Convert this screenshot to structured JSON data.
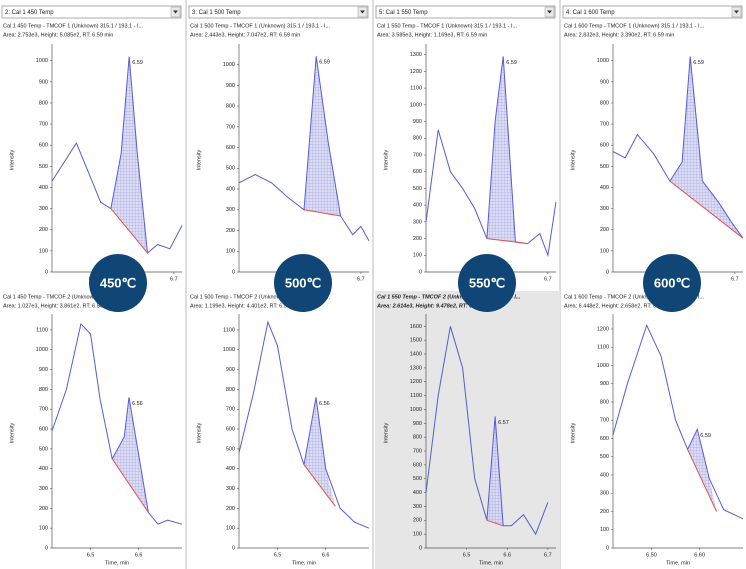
{
  "ui": {
    "dropdowns": [
      "2: Cal 1 450 Temp",
      "3: Cal 1 500 Temp",
      "5: Cal 1 550 Temp",
      "4: Cal 1 600 Temp"
    ],
    "badges": [
      "450℃",
      "500℃",
      "550℃",
      "600℃"
    ]
  },
  "chart_data": [
    {
      "type": "line",
      "title": "Cal 1 450 Temp - TMCOF 1 (Unknown) 315.1 / 193.1 - I...",
      "subtitle": "Area: 2.753e3, Height: 5.085e2, RT: 6.59 min",
      "x": [
        6.4,
        6.43,
        6.46,
        6.49,
        6.52,
        6.545,
        6.57,
        6.59,
        6.61,
        6.635,
        6.66,
        6.69,
        6.72
      ],
      "values": [
        430,
        520,
        610,
        470,
        330,
        300,
        560,
        1020,
        560,
        90,
        130,
        110,
        220
      ],
      "color": "#5a5ad8",
      "baseline": {
        "x": [
          6.545,
          6.635
        ],
        "values": [
          300,
          90
        ],
        "color": "#e0504a"
      },
      "peak_label": "6.59",
      "xlim": [
        6.4,
        6.72
      ],
      "ylim": [
        0,
        1060
      ],
      "xticks": [
        6.5,
        6.6,
        6.7
      ],
      "yticks": [
        0,
        100,
        200,
        300,
        400,
        500,
        600,
        700,
        800,
        900,
        1000
      ],
      "ylabel": "Intensity"
    },
    {
      "type": "line",
      "title": "Cal 1 500 Temp - TMCOF 1 (Unknown) 315.1 / 193.1 - I...",
      "subtitle": "Area: 2.443e3, Height: 7.047e2, RT: 6.59 min",
      "x": [
        6.4,
        6.44,
        6.48,
        6.52,
        6.56,
        6.59,
        6.62,
        6.65,
        6.68,
        6.7,
        6.72
      ],
      "values": [
        430,
        470,
        430,
        360,
        300,
        1040,
        620,
        270,
        180,
        220,
        150
      ],
      "color": "#5a5ad8",
      "baseline": {
        "x": [
          6.56,
          6.65
        ],
        "values": [
          300,
          270
        ],
        "color": "#e0504a"
      },
      "peak_label": "6.59",
      "xlim": [
        6.4,
        6.72
      ],
      "ylim": [
        0,
        1080
      ],
      "xticks": [
        6.5,
        6.6,
        6.7
      ],
      "yticks": [
        0,
        100,
        200,
        300,
        400,
        500,
        600,
        700,
        800,
        900,
        1000
      ],
      "ylabel": "Intensity"
    },
    {
      "type": "line",
      "title": "Cal 1 550 Temp - TMCOF 1 (Unknown) 315.1 / 193.1 - I...",
      "subtitle": "Area: 3.585e3, Height: 1.169e3, RT: 6.59 min",
      "x": [
        6.4,
        6.43,
        6.46,
        6.49,
        6.52,
        6.55,
        6.57,
        6.59,
        6.62,
        6.65,
        6.68,
        6.7,
        6.72
      ],
      "values": [
        300,
        850,
        600,
        500,
        380,
        200,
        900,
        1290,
        180,
        170,
        230,
        100,
        420
      ],
      "color": "#5a5ad8",
      "baseline": {
        "x": [
          6.55,
          6.65
        ],
        "values": [
          200,
          170
        ],
        "color": "#e0504a"
      },
      "peak_label": "6.59",
      "xlim": [
        6.4,
        6.72
      ],
      "ylim": [
        0,
        1340
      ],
      "xticks": [
        6.5,
        6.6,
        6.7
      ],
      "yticks": [
        0,
        100,
        200,
        300,
        400,
        500,
        600,
        700,
        800,
        900,
        1000,
        1100,
        1200,
        1300
      ],
      "ylabel": "Intensity"
    },
    {
      "type": "line",
      "title": "Cal 1 600 Temp - TMCOF 1 (Unknown) 315.1 / 193.1 - I...",
      "subtitle": "Area: 2.832e3, Height: 3.390e2, RT: 6.59 min",
      "x": [
        6.4,
        6.43,
        6.46,
        6.5,
        6.54,
        6.57,
        6.59,
        6.62,
        6.66,
        6.69,
        6.72
      ],
      "values": [
        570,
        540,
        650,
        560,
        430,
        520,
        1020,
        430,
        330,
        240,
        160
      ],
      "color": "#5a5ad8",
      "baseline": {
        "x": [
          6.54,
          6.72
        ],
        "values": [
          430,
          160
        ],
        "color": "#e0504a"
      },
      "peak_label": "6.59",
      "xlim": [
        6.4,
        6.72
      ],
      "ylim": [
        0,
        1060
      ],
      "xticks": [
        6.5,
        6.6,
        6.7
      ],
      "yticks": [
        0,
        100,
        200,
        300,
        400,
        500,
        600,
        700,
        800,
        900,
        1000
      ],
      "ylabel": "Intensity"
    },
    {
      "type": "line",
      "title": "Cal 1 450 Temp - TMCOF 2 (Unknown) 315.1 / 123.1 - I...",
      "subtitle": "Area: 1.027e3, Height: 3.861e2, RT: 6.56 min",
      "x": [
        6.42,
        6.45,
        6.48,
        6.5,
        6.52,
        6.545,
        6.57,
        6.58,
        6.6,
        6.62,
        6.64,
        6.66,
        6.69
      ],
      "values": [
        590,
        800,
        1130,
        1080,
        750,
        450,
        560,
        760,
        470,
        180,
        120,
        140,
        120
      ],
      "color": "#5a5ad8",
      "baseline": {
        "x": [
          6.545,
          6.62
        ],
        "values": [
          450,
          180
        ],
        "color": "#e0504a"
      },
      "peak_label": "6.56",
      "xlim": [
        6.42,
        6.69
      ],
      "ylim": [
        0,
        1160
      ],
      "xticks": [
        6.5,
        6.6
      ],
      "yticks": [
        0,
        100,
        200,
        300,
        400,
        500,
        600,
        700,
        800,
        900,
        1000,
        1100
      ],
      "xlabel": "Time, min",
      "ylabel": "Intensity"
    },
    {
      "type": "line",
      "title": "Cal 1 500 Temp - TMCOF 2 (Unknown) 315.1 / 123.1 - I...",
      "subtitle": "Area: 1.199e3, Height: 4.401e2, RT: 6.56 min",
      "x": [
        6.42,
        6.45,
        6.48,
        6.5,
        6.53,
        6.555,
        6.58,
        6.6,
        6.63,
        6.66,
        6.69
      ],
      "values": [
        480,
        780,
        1140,
        1020,
        600,
        420,
        760,
        400,
        200,
        130,
        100
      ],
      "color": "#5a5ad8",
      "baseline": {
        "x": [
          6.555,
          6.62
        ],
        "values": [
          420,
          210
        ],
        "color": "#e0504a"
      },
      "peak_label": "6.56",
      "xlim": [
        6.42,
        6.69
      ],
      "ylim": [
        0,
        1160
      ],
      "xticks": [
        6.5,
        6.6
      ],
      "yticks": [
        0,
        100,
        200,
        300,
        400,
        500,
        600,
        700,
        800,
        900,
        1000,
        1100
      ],
      "xlabel": "Time, min",
      "ylabel": "Intensity"
    },
    {
      "type": "line",
      "title": "Cal 1 550 Temp - TMCOF 2 (Unknown) 315.1 / 123.1 - I...",
      "subtitle": "Area: 2.614e3, Height: 9.478e2, RT: 6.57 min",
      "x": [
        6.4,
        6.43,
        6.46,
        6.49,
        6.52,
        6.55,
        6.57,
        6.59,
        6.61,
        6.64,
        6.67,
        6.7
      ],
      "values": [
        400,
        1100,
        1600,
        1300,
        500,
        200,
        950,
        160,
        160,
        240,
        100,
        330
      ],
      "color": "#5a5ad8",
      "baseline": {
        "x": [
          6.55,
          6.59
        ],
        "values": [
          200,
          160
        ],
        "color": "#e0504a"
      },
      "peak_label": "6.57",
      "selected": true,
      "xlim": [
        6.4,
        6.72
      ],
      "ylim": [
        0,
        1660
      ],
      "xticks": [
        6.5,
        6.6,
        6.7
      ],
      "yticks": [
        0,
        100,
        200,
        300,
        400,
        500,
        600,
        700,
        800,
        900,
        1000,
        1100,
        1200,
        1300,
        1400,
        1500,
        1600
      ],
      "xlabel": "Time, min",
      "ylabel": "Intensity"
    },
    {
      "type": "line",
      "title": "Cal 1 600 Temp - TMCOF 2 (Unknown) 315.1 / 123.1 - I...",
      "subtitle": "Area: 6.448e2, Height: 2.658e2, RT: 6.59 min",
      "x": [
        6.42,
        6.45,
        6.49,
        6.52,
        6.55,
        6.575,
        6.595,
        6.62,
        6.65,
        6.69
      ],
      "values": [
        620,
        900,
        1220,
        1050,
        700,
        540,
        650,
        380,
        210,
        160
      ],
      "color": "#5a5ad8",
      "baseline": {
        "x": [
          6.575,
          6.635
        ],
        "values": [
          540,
          200
        ],
        "color": "#e0504a"
      },
      "peak_label": "6.59",
      "xlim": [
        6.42,
        6.69
      ],
      "ylim": [
        0,
        1260
      ],
      "xticks": [
        {
          "value": 6.5,
          "label": "6.50"
        },
        {
          "value": 6.6,
          "label": "6.60"
        }
      ],
      "yticks": [
        0,
        100,
        200,
        300,
        400,
        500,
        600,
        700,
        800,
        900,
        1000,
        1100,
        1200
      ],
      "xlabel": "Time, min",
      "ylabel": "Intensity"
    }
  ]
}
